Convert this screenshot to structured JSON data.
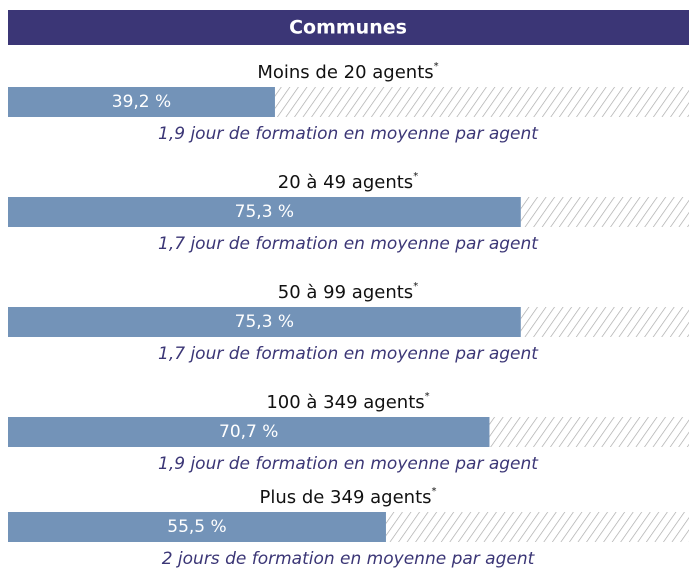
{
  "chart_data": {
    "type": "bar",
    "orientation": "horizontal",
    "title": "Communes",
    "categories": [
      "Moins de 20 agents",
      "20 à 49 agents",
      "50 à 99 agents",
      "100 à 349 agents",
      "Plus de 349 agents"
    ],
    "footnote_marker": "*",
    "values": [
      39.2,
      75.3,
      75.3,
      70.7,
      55.5
    ],
    "value_labels": [
      "39,2 %",
      "75,3 %",
      "75,3 %",
      "70,7 %",
      "55,5 %"
    ],
    "annotations": [
      "1,9 jour de formation en moyenne par agent",
      "1,7 jour de formation en moyenne par agent",
      "1,7 jour de formation en moyenne par agent",
      "1,9 jour de formation en moyenne par agent",
      "2 jours de formation en moyenne par agent"
    ],
    "xlim": [
      0,
      100
    ],
    "color": "#7393b8",
    "header_color": "#3b3676",
    "annotation_color": "#3b3676"
  }
}
